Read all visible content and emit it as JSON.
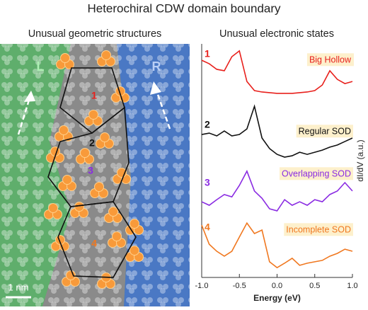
{
  "title": "Heterochiral CDW domain boundary",
  "image_panel": {
    "title": "Unusual geometric structures",
    "left_label": "L",
    "right_label": "R",
    "site_labels": [
      "1",
      "2",
      "3",
      "4"
    ],
    "scale_bar": "1 nm"
  },
  "chart_data": {
    "type": "line",
    "title": "Unusual electronic states",
    "xlabel": "Energy (eV)",
    "ylabel": "dI/dV (a.u.)",
    "x": [
      -1.0,
      -0.9,
      -0.8,
      -0.7,
      -0.6,
      -0.5,
      -0.4,
      -0.3,
      -0.2,
      -0.1,
      0.0,
      0.1,
      0.2,
      0.3,
      0.4,
      0.5,
      0.6,
      0.7,
      0.8,
      0.9,
      1.0
    ],
    "xlim": [
      -1.0,
      1.0
    ],
    "xticks": [
      {
        "value": -1.0,
        "label": "-1.0"
      },
      {
        "value": -0.5,
        "label": "-0.5"
      },
      {
        "value": 0.0,
        "label": "0.0"
      },
      {
        "value": 0.5,
        "label": "0.5"
      },
      {
        "value": 1.0,
        "label": "1.0"
      }
    ],
    "ylim": [
      0,
      10
    ],
    "series": [
      {
        "name": "Big Hollow",
        "marker": "1",
        "color": "#e8201c",
        "values": [
          9.3,
          9.15,
          8.91,
          8.85,
          9.45,
          9.7,
          8.39,
          8.0,
          7.94,
          7.91,
          7.88,
          7.88,
          7.88,
          7.91,
          7.94,
          8.0,
          8.24,
          8.85,
          8.48,
          8.3,
          8.39
        ]
      },
      {
        "name": "Regular SOD",
        "marker": "2",
        "color": "#111111",
        "values": [
          6.12,
          6.18,
          6.06,
          6.27,
          6.06,
          6.12,
          6.36,
          7.33,
          5.97,
          5.52,
          5.27,
          5.15,
          5.21,
          5.36,
          5.27,
          5.36,
          5.45,
          5.58,
          5.67,
          5.82,
          5.97
        ]
      },
      {
        "name": "Overlapping SOD",
        "marker": "3",
        "color": "#8a2be2",
        "values": [
          3.24,
          3.09,
          3.33,
          3.55,
          3.45,
          3.94,
          4.55,
          3.7,
          3.39,
          2.94,
          2.85,
          3.33,
          3.09,
          3.24,
          3.09,
          3.33,
          3.24,
          3.55,
          3.7,
          4.06,
          3.7
        ]
      },
      {
        "name": "Incomplete SOD",
        "marker": "4",
        "color": "#f07820",
        "values": [
          2.24,
          1.42,
          1.12,
          0.91,
          1.12,
          1.73,
          2.33,
          1.88,
          2.03,
          0.67,
          0.42,
          0.61,
          0.82,
          0.52,
          0.61,
          0.67,
          0.73,
          0.91,
          1.03,
          1.21,
          1.12
        ]
      }
    ]
  }
}
